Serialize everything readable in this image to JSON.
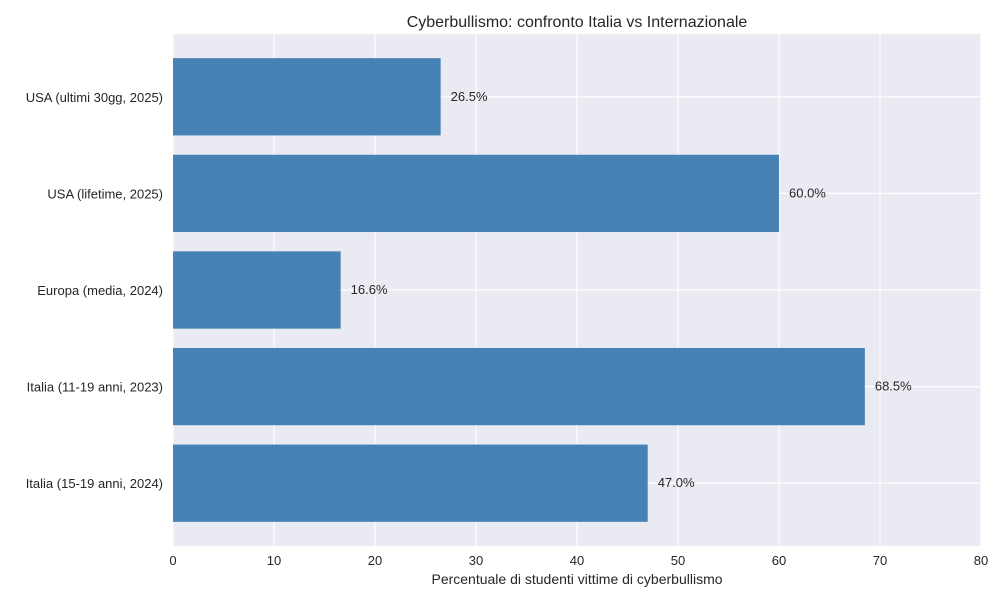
{
  "chart_data": {
    "type": "bar",
    "orientation": "horizontal",
    "title": "Cyberbullismo: confronto Italia vs Internazionale",
    "xlabel": "Percentuale di studenti vittime di cyberbullismo",
    "ylabel": "",
    "categories": [
      "Italia (15-19 anni, 2024)",
      "Italia (11-19 anni, 2023)",
      "Europa (media, 2024)",
      "USA (lifetime, 2025)",
      "USA (ultimi 30gg, 2025)"
    ],
    "values": [
      47.0,
      68.5,
      16.6,
      60.0,
      26.5
    ],
    "data_labels": [
      "47.0%",
      "68.5%",
      "16.6%",
      "60.0%",
      "26.5%"
    ],
    "xlim": [
      0,
      80
    ],
    "xticks": [
      0,
      10,
      20,
      30,
      40,
      50,
      60,
      70,
      80
    ],
    "grid": true,
    "colors": {
      "bar": "#4682b4",
      "plot_background": "#eaeaf2",
      "grid": "#ffffff",
      "text": "#262626"
    }
  }
}
